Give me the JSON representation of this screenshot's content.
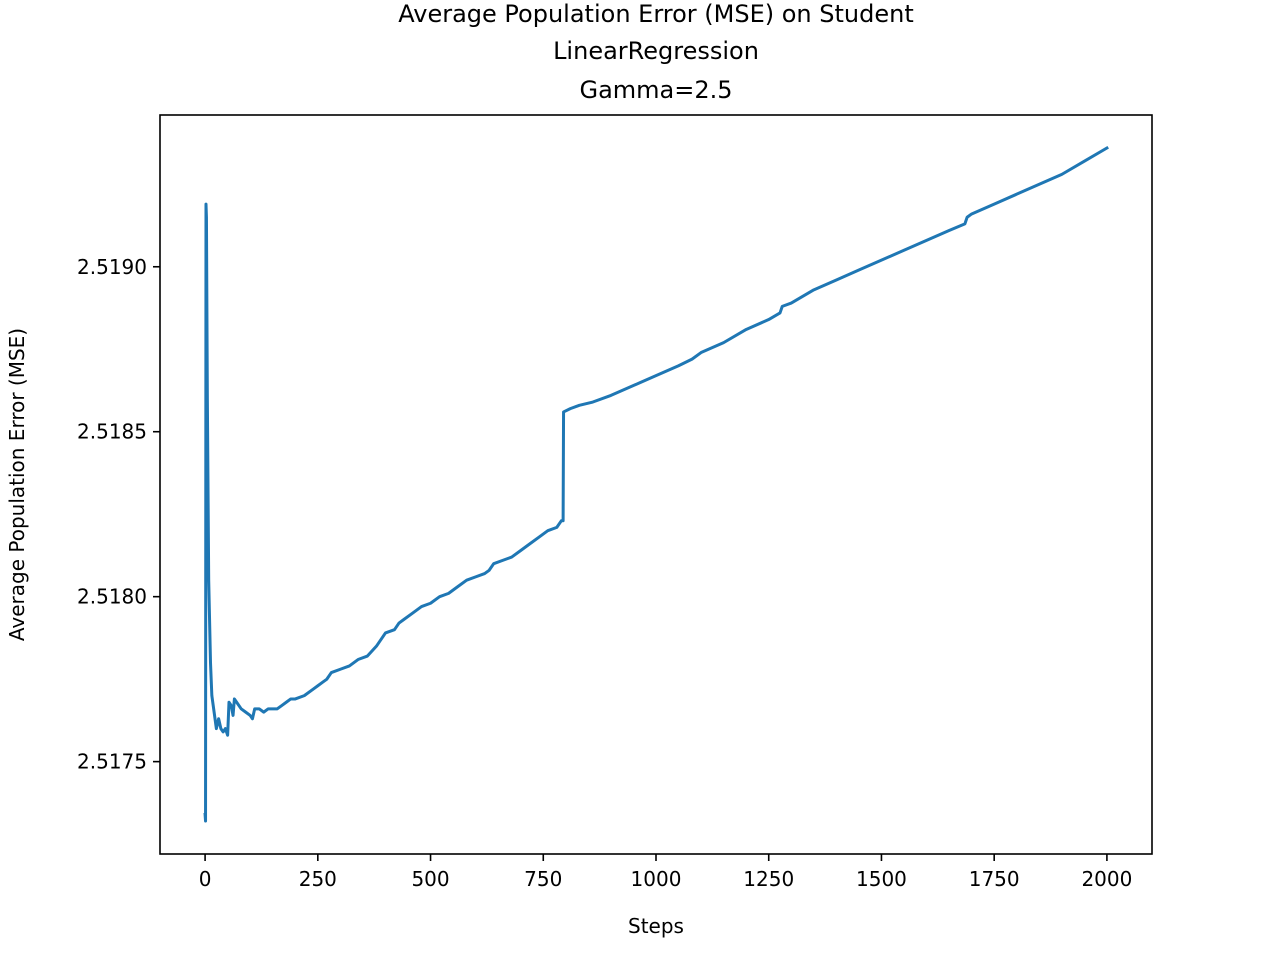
{
  "chart_data": {
    "type": "line",
    "title_lines": [
      "Average Population Error (MSE) on Student",
      "LinearRegression",
      "Gamma=2.5"
    ],
    "xlabel": "Steps",
    "ylabel": "Average Population Error (MSE)",
    "xlim": [
      -100,
      2100
    ],
    "ylim": [
      2.51722,
      2.51946
    ],
    "xticks": [
      0,
      250,
      500,
      750,
      1000,
      1250,
      1500,
      1750,
      2000
    ],
    "xtick_labels": [
      "0",
      "250",
      "500",
      "750",
      "1000",
      "1250",
      "1500",
      "1750",
      "2000"
    ],
    "yticks": [
      2.5175,
      2.518,
      2.5185,
      2.519
    ],
    "ytick_labels": [
      "2.5175",
      "2.5180",
      "2.5185",
      "2.5190"
    ],
    "grid": false,
    "series": [
      {
        "color": "#1f77b4",
        "points": [
          [
            0,
            2.51734
          ],
          [
            1,
            2.51732
          ],
          [
            2,
            2.51919
          ],
          [
            3,
            2.51915
          ],
          [
            5,
            2.5186
          ],
          [
            8,
            2.51805
          ],
          [
            12,
            2.5178
          ],
          [
            15,
            2.5177
          ],
          [
            20,
            2.51765
          ],
          [
            25,
            2.5176
          ],
          [
            30,
            2.51763
          ],
          [
            35,
            2.5176
          ],
          [
            40,
            2.51759
          ],
          [
            45,
            2.5176
          ],
          [
            50,
            2.51758
          ],
          [
            53,
            2.51768
          ],
          [
            58,
            2.51767
          ],
          [
            62,
            2.51764
          ],
          [
            65,
            2.51769
          ],
          [
            70,
            2.51768
          ],
          [
            80,
            2.51766
          ],
          [
            90,
            2.51765
          ],
          [
            100,
            2.51764
          ],
          [
            105,
            2.51763
          ],
          [
            110,
            2.51766
          ],
          [
            120,
            2.51766
          ],
          [
            130,
            2.51765
          ],
          [
            140,
            2.51766
          ],
          [
            160,
            2.51766
          ],
          [
            170,
            2.51767
          ],
          [
            180,
            2.51768
          ],
          [
            190,
            2.51769
          ],
          [
            200,
            2.51769
          ],
          [
            220,
            2.5177
          ],
          [
            240,
            2.51772
          ],
          [
            250,
            2.51773
          ],
          [
            260,
            2.51774
          ],
          [
            270,
            2.51775
          ],
          [
            280,
            2.51777
          ],
          [
            300,
            2.51778
          ],
          [
            320,
            2.51779
          ],
          [
            340,
            2.51781
          ],
          [
            360,
            2.51782
          ],
          [
            380,
            2.51785
          ],
          [
            390,
            2.51787
          ],
          [
            400,
            2.51789
          ],
          [
            420,
            2.5179
          ],
          [
            430,
            2.51792
          ],
          [
            440,
            2.51793
          ],
          [
            460,
            2.51795
          ],
          [
            480,
            2.51797
          ],
          [
            500,
            2.51798
          ],
          [
            520,
            2.518
          ],
          [
            540,
            2.51801
          ],
          [
            560,
            2.51803
          ],
          [
            580,
            2.51805
          ],
          [
            600,
            2.51806
          ],
          [
            620,
            2.51807
          ],
          [
            630,
            2.51808
          ],
          [
            640,
            2.5181
          ],
          [
            660,
            2.51811
          ],
          [
            680,
            2.51812
          ],
          [
            700,
            2.51814
          ],
          [
            720,
            2.51816
          ],
          [
            740,
            2.51818
          ],
          [
            760,
            2.5182
          ],
          [
            780,
            2.51821
          ],
          [
            790,
            2.51823
          ],
          [
            794,
            2.51823
          ],
          [
            795,
            2.51856
          ],
          [
            810,
            2.51857
          ],
          [
            830,
            2.51858
          ],
          [
            860,
            2.51859
          ],
          [
            900,
            2.51861
          ],
          [
            950,
            2.51864
          ],
          [
            1000,
            2.51867
          ],
          [
            1050,
            2.5187
          ],
          [
            1080,
            2.51872
          ],
          [
            1100,
            2.51874
          ],
          [
            1150,
            2.51877
          ],
          [
            1200,
            2.51881
          ],
          [
            1250,
            2.51884
          ],
          [
            1275,
            2.51886
          ],
          [
            1280,
            2.51888
          ],
          [
            1300,
            2.51889
          ],
          [
            1350,
            2.51893
          ],
          [
            1400,
            2.51896
          ],
          [
            1450,
            2.51899
          ],
          [
            1500,
            2.51902
          ],
          [
            1550,
            2.51905
          ],
          [
            1600,
            2.51908
          ],
          [
            1650,
            2.51911
          ],
          [
            1685,
            2.51913
          ],
          [
            1690,
            2.51915
          ],
          [
            1700,
            2.51916
          ],
          [
            1750,
            2.51919
          ],
          [
            1800,
            2.51922
          ],
          [
            1850,
            2.51925
          ],
          [
            1900,
            2.51928
          ],
          [
            1950,
            2.51932
          ],
          [
            2000,
            2.51936
          ]
        ]
      }
    ]
  }
}
